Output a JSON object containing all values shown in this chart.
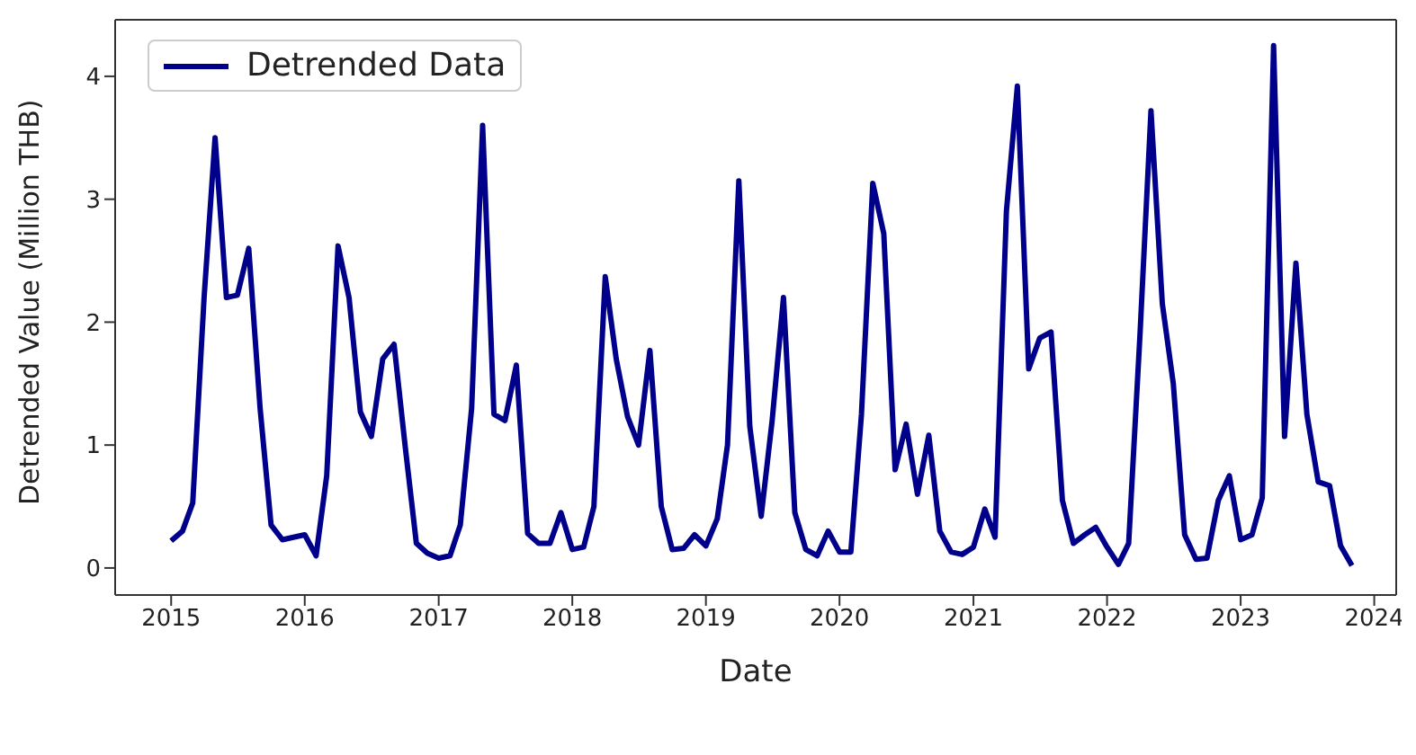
{
  "chart_data": {
    "type": "line",
    "xlabel": "Date",
    "ylabel": "Detrended Value (Million THB)",
    "x": [
      "2015-01",
      "2015-02",
      "2015-03",
      "2015-04",
      "2015-05",
      "2015-06",
      "2015-07",
      "2015-08",
      "2015-09",
      "2015-10",
      "2015-11",
      "2015-12",
      "2016-01",
      "2016-02",
      "2016-03",
      "2016-04",
      "2016-05",
      "2016-06",
      "2016-07",
      "2016-08",
      "2016-09",
      "2016-10",
      "2016-11",
      "2016-12",
      "2017-01",
      "2017-02",
      "2017-03",
      "2017-04",
      "2017-05",
      "2017-06",
      "2017-07",
      "2017-08",
      "2017-09",
      "2017-10",
      "2017-11",
      "2017-12",
      "2018-01",
      "2018-02",
      "2018-03",
      "2018-04",
      "2018-05",
      "2018-06",
      "2018-07",
      "2018-08",
      "2018-09",
      "2018-10",
      "2018-11",
      "2018-12",
      "2019-01",
      "2019-02",
      "2019-03",
      "2019-04",
      "2019-05",
      "2019-06",
      "2019-07",
      "2019-08",
      "2019-09",
      "2019-10",
      "2019-11",
      "2019-12",
      "2020-01",
      "2020-02",
      "2020-03",
      "2020-04",
      "2020-05",
      "2020-06",
      "2020-07",
      "2020-08",
      "2020-09",
      "2020-10",
      "2020-11",
      "2020-12",
      "2021-01",
      "2021-02",
      "2021-03",
      "2021-04",
      "2021-05",
      "2021-06",
      "2021-07",
      "2021-08",
      "2021-09",
      "2021-10",
      "2021-11",
      "2021-12",
      "2022-01",
      "2022-02",
      "2022-03",
      "2022-04",
      "2022-05",
      "2022-06",
      "2022-07",
      "2022-08",
      "2022-09",
      "2022-10",
      "2022-11",
      "2022-12",
      "2023-01",
      "2023-02",
      "2023-03",
      "2023-04",
      "2023-05",
      "2023-06",
      "2023-07",
      "2023-08",
      "2023-09",
      "2023-10",
      "2023-11"
    ],
    "series": [
      {
        "name": "Detrended Data",
        "color": "#00008b",
        "values": [
          0.22,
          0.3,
          0.53,
          2.2,
          3.5,
          2.2,
          2.22,
          2.6,
          1.3,
          0.35,
          0.23,
          0.25,
          0.27,
          0.1,
          0.75,
          2.62,
          2.2,
          1.27,
          1.07,
          1.7,
          1.82,
          1.0,
          0.2,
          0.12,
          0.08,
          0.1,
          0.35,
          1.3,
          3.6,
          1.25,
          1.2,
          1.65,
          0.28,
          0.2,
          0.2,
          0.45,
          0.15,
          0.17,
          0.5,
          2.37,
          1.7,
          1.23,
          1.0,
          1.77,
          0.5,
          0.15,
          0.16,
          0.27,
          0.18,
          0.4,
          1.0,
          3.15,
          1.15,
          0.42,
          1.2,
          2.2,
          0.45,
          0.15,
          0.1,
          0.3,
          0.13,
          0.13,
          1.25,
          3.13,
          2.72,
          0.8,
          1.17,
          0.6,
          1.08,
          0.3,
          0.13,
          0.11,
          0.17,
          0.48,
          0.25,
          2.9,
          3.92,
          1.62,
          1.87,
          1.92,
          0.55,
          0.2,
          0.27,
          0.33,
          0.17,
          0.03,
          0.2,
          1.9,
          3.72,
          2.15,
          1.5,
          0.27,
          0.07,
          0.08,
          0.55,
          0.75,
          0.23,
          0.27,
          0.57,
          4.25,
          1.07,
          2.48,
          1.25,
          0.7,
          0.67,
          0.18,
          0.02
        ]
      }
    ],
    "xlim": [
      "2014-08",
      "2024-03"
    ],
    "xticks": [
      "2015",
      "2016",
      "2017",
      "2018",
      "2019",
      "2020",
      "2021",
      "2022",
      "2023",
      "2024"
    ],
    "ylim": [
      -0.22,
      4.46
    ],
    "yticks": [
      0,
      1,
      2,
      3,
      4
    ],
    "legend": "top left",
    "marker": "none",
    "line_style": "solid"
  }
}
